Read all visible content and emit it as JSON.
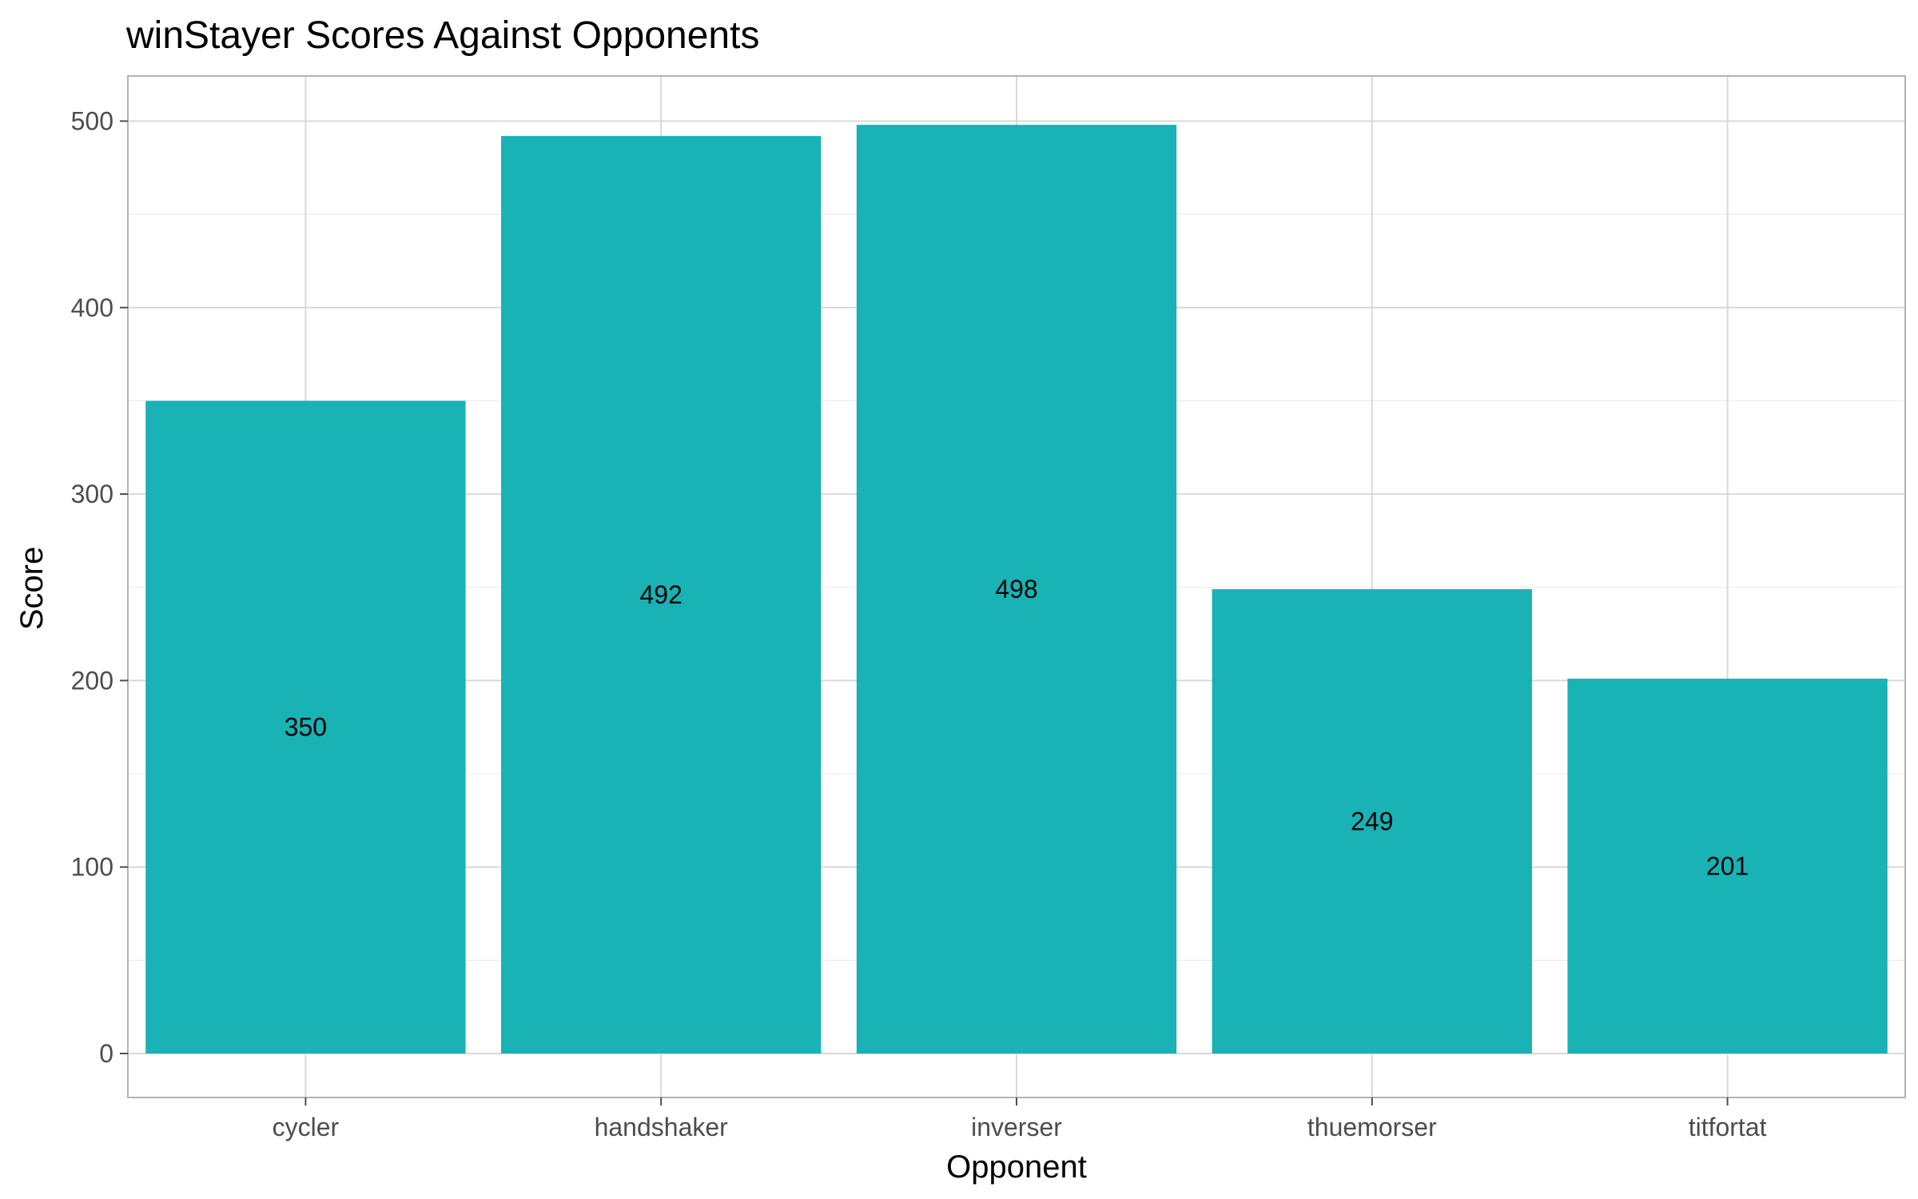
{
  "chart_data": {
    "type": "bar",
    "title": "winStayer Scores Against Opponents",
    "xlabel": "Opponent",
    "ylabel": "Score",
    "categories": [
      "cycler",
      "handshaker",
      "inverser",
      "thuemorser",
      "titfortat"
    ],
    "values": [
      350,
      492,
      498,
      249,
      201
    ],
    "data_labels": [
      "350",
      "492",
      "498",
      "249",
      "201"
    ],
    "ylim": [
      0,
      524
    ],
    "yticks": [
      0,
      100,
      200,
      300,
      400,
      500
    ],
    "ytick_labels": [
      "0",
      "100",
      "200",
      "300",
      "400",
      "500"
    ],
    "grid": true,
    "legend": "none",
    "label_position": "middle of bar",
    "colors": {
      "bar": "#19B2B5",
      "grid_major": "#D9D9D9",
      "grid_minor": "#EBEBEB",
      "panel_border": "#B3B3B3",
      "tick": "#4D4D4D"
    }
  }
}
